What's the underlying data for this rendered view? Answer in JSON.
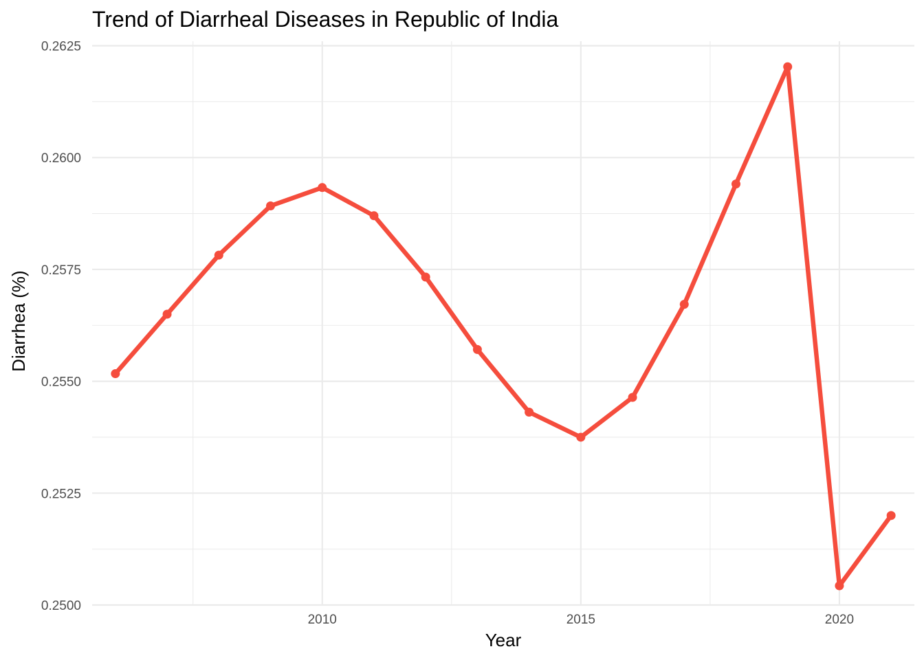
{
  "chart_data": {
    "type": "line",
    "title": "Trend of Diarrheal Diseases in Republic of India",
    "xlabel": "Year",
    "ylabel": "Diarrhea (%)",
    "x": [
      2006,
      2007,
      2008,
      2009,
      2010,
      2011,
      2012,
      2013,
      2014,
      2015,
      2016,
      2017,
      2018,
      2019,
      2020,
      2021
    ],
    "series": [
      {
        "name": "",
        "color": "#f54d3d",
        "values": [
          0.25517,
          0.2565,
          0.25782,
          0.25892,
          0.25933,
          0.2587,
          0.25733,
          0.25571,
          0.25431,
          0.25375,
          0.25464,
          0.25672,
          0.25941,
          0.26203,
          0.25043,
          0.252
        ]
      }
    ],
    "xlim": [
      2005.55,
      2021.45
    ],
    "ylim": [
      0.25,
      0.2626
    ],
    "x_ticks": [
      2010,
      2015,
      2020
    ],
    "x_tick_labels": [
      "2010",
      "2015",
      "2020"
    ],
    "y_ticks": [
      0.25,
      0.2525,
      0.255,
      0.2575,
      0.26,
      0.2625
    ],
    "y_tick_labels": [
      "0.2500",
      "0.2525",
      "0.2550",
      "0.2575",
      "0.2600",
      "0.2625"
    ],
    "grid": true,
    "legend": "none"
  }
}
